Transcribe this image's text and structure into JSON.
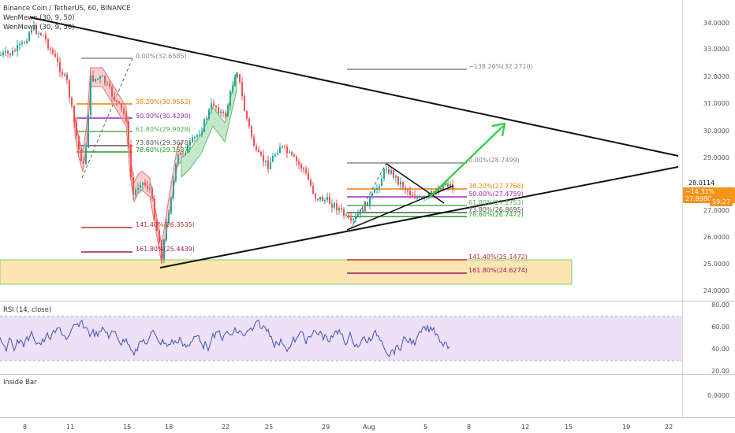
{
  "legend": {
    "symbol": "Binance Coin / TetherUS, 60, BINANCE",
    "indicator1": "WenMewn (30, 9, 50)",
    "indicator2": "WenMewn (30, 9, 50)",
    "rsi": "RSI (14, close)",
    "insidebar": "Inside Bar"
  },
  "price_axis": [
    "34.0000",
    "33.0000",
    "32.0000",
    "31.0000",
    "30.0000",
    "29.0000",
    "27.0000",
    "26.0000",
    "25.0000",
    "24.0000"
  ],
  "rsi_axis": [
    "80.00",
    "60.00",
    "40.00",
    "20.00"
  ],
  "ib_axis": [
    "0.0000"
  ],
  "time_axis": [
    "8",
    "11",
    "15",
    "18",
    "22",
    "25",
    "29",
    "Aug",
    "5",
    "8",
    "12",
    "15",
    "19",
    "22"
  ],
  "price_tags": {
    "last": "28.0114",
    "change": "−14.31%",
    "price": "27.8980",
    "timer": "59:27"
  },
  "fib1": [
    {
      "label": "0.00%(32.6585)",
      "color": "#888888"
    },
    {
      "label": "38.20%(30.9552)",
      "color": "#f57c00"
    },
    {
      "label": "50.00%(30.4290)",
      "color": "#9c27b0"
    },
    {
      "label": "61.80%(29.9028)",
      "color": "#4caf50"
    },
    {
      "label": "73.80%(29.3678)",
      "color": "#555555"
    },
    {
      "label": "78.60%(29.1537)",
      "color": "#1ea01e"
    },
    {
      "label": "141.40%(26.3535)",
      "color": "#c62828"
    },
    {
      "label": "161.80%(25.4439)",
      "color": "#a0155f"
    }
  ],
  "fib2": [
    {
      "label": "−138.20%(32.2710)",
      "color": "#888888"
    },
    {
      "label": "0.00%(28.7499)",
      "color": "#888888"
    },
    {
      "label": "38.20%(27.7766)",
      "color": "#f57c00"
    },
    {
      "label": "50.00%(27.4759)",
      "color": "#9c27b0"
    },
    {
      "label": "61.80%(27.1753)",
      "color": "#4caf50"
    },
    {
      "label": "73.80%(26.8695)",
      "color": "#555555"
    },
    {
      "label": "78.60%(26.7472)",
      "color": "#1ea01e"
    },
    {
      "label": "141.40%(25.1472)",
      "color": "#c62828"
    },
    {
      "label": "161.80%(24.6274)",
      "color": "#a0155f"
    }
  ],
  "colors": {
    "up": "#26a69a",
    "down": "#ef5350",
    "rsi": "#3f51b5",
    "zone": "#fbe5b0"
  }
}
